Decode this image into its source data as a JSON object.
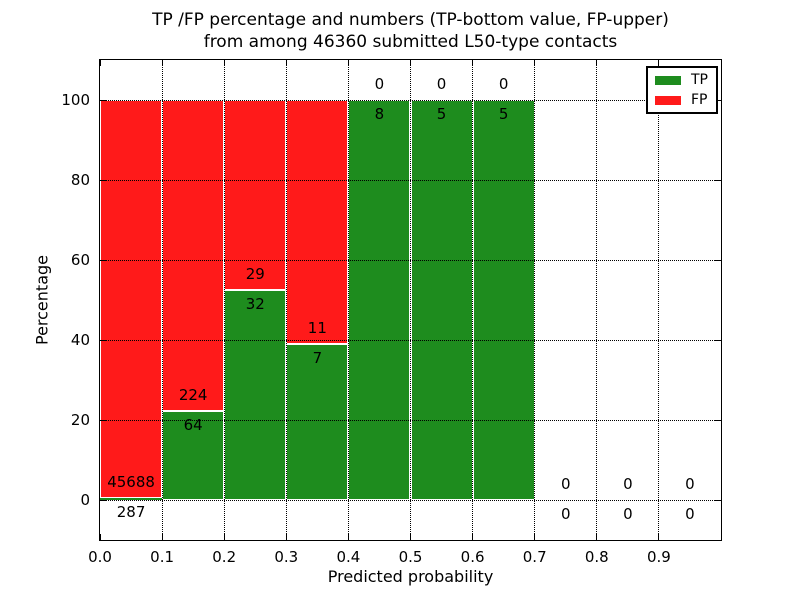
{
  "title": {
    "line1": "TP /FP percentage and numbers (TP-bottom value, FP-upper)",
    "line2": "from among 46360 submitted L50-type contacts"
  },
  "axes": {
    "xlabel": "Predicted probability",
    "ylabel": "Percentage",
    "x_tick_values": [
      0.0,
      0.1,
      0.2,
      0.3,
      0.4,
      0.5,
      0.6,
      0.7,
      0.8,
      0.9
    ],
    "x_tick_labels": [
      "0.0",
      "0.1",
      "0.2",
      "0.3",
      "0.4",
      "0.5",
      "0.6",
      "0.7",
      "0.8",
      "0.9"
    ],
    "y_tick_values": [
      0,
      20,
      40,
      60,
      80,
      100
    ],
    "y_tick_labels": [
      "0",
      "20",
      "40",
      "60",
      "80",
      "100"
    ],
    "x_range": [
      0.0,
      1.0
    ],
    "y_range": [
      -10,
      110
    ]
  },
  "legend": {
    "items": [
      {
        "label": "TP",
        "color": "#1e8c1e"
      },
      {
        "label": "FP",
        "color": "#ff1a1a"
      }
    ]
  },
  "colors": {
    "tp_green": "#1e8c1e",
    "fp_red": "#ff1a1a",
    "grid": "#000000",
    "bar_edge": "#ffffff"
  },
  "chart_data": {
    "type": "bar",
    "stacked": true,
    "normalized_to_percent": true,
    "title": "TP /FP percentage and numbers (TP-bottom value, FP-upper) from among 46360 submitted L50-type contacts",
    "xlabel": "Predicted probability",
    "ylabel": "Percentage",
    "xlim": [
      0.0,
      1.0
    ],
    "ylim": [
      -10,
      110
    ],
    "total_contacts": 46360,
    "bin_edges": [
      0.0,
      0.1,
      0.2,
      0.3,
      0.4,
      0.5,
      0.6,
      0.7,
      0.8,
      0.9,
      1.0
    ],
    "categories": [
      "0.0-0.1",
      "0.1-0.2",
      "0.2-0.3",
      "0.3-0.4",
      "0.4-0.5",
      "0.5-0.6",
      "0.6-0.7",
      "0.7-0.8",
      "0.8-0.9",
      "0.9-1.0"
    ],
    "series": [
      {
        "name": "TP",
        "color": "#1e8c1e",
        "counts": [
          287,
          64,
          32,
          7,
          8,
          5,
          5,
          0,
          0,
          0
        ]
      },
      {
        "name": "FP",
        "color": "#ff1a1a",
        "counts": [
          45688,
          224,
          29,
          11,
          0,
          0,
          0,
          0,
          0,
          0
        ]
      }
    ],
    "tp_percent_by_bin": [
      0.62,
      22.22,
      52.46,
      38.89,
      100,
      100,
      100,
      null,
      null,
      null
    ],
    "grid": {
      "style": "dotted",
      "color": "#000000",
      "drawn_over_bars": true
    },
    "legend_position": "upper right"
  }
}
